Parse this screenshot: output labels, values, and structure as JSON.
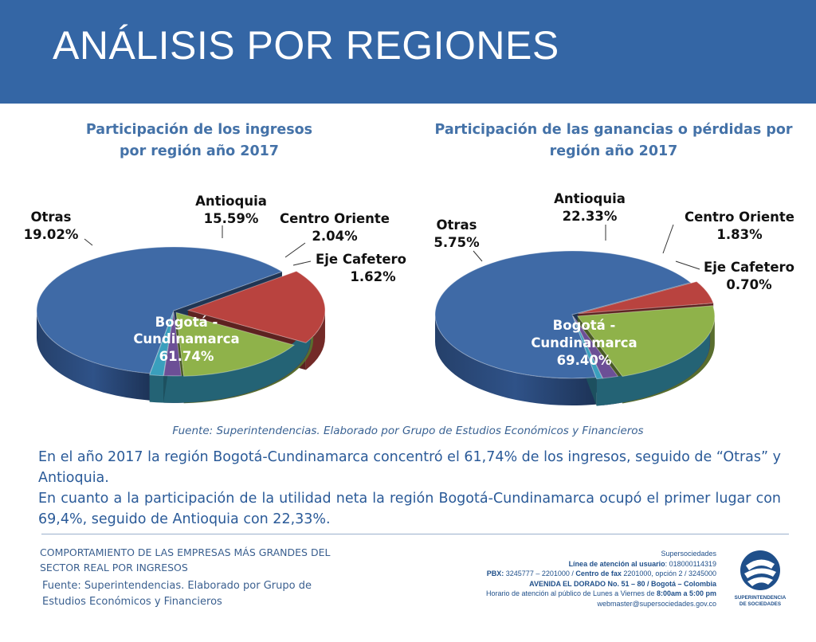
{
  "header": {
    "title": "ANÁLISIS POR REGIONES"
  },
  "chart_data": [
    {
      "type": "pie",
      "title_line1": "Participación de los ingresos",
      "title_line2": "por región año 2017",
      "categories": [
        "Bogotá - Cundinamarca",
        "Otras",
        "Antioquia",
        "Centro Oriente",
        "Eje Cafetero"
      ],
      "values": [
        61.74,
        19.02,
        15.59,
        2.04,
        1.62
      ],
      "data_labels": [
        "61.74%",
        "19.02%",
        "15.59%",
        "2.04%",
        "1.62%"
      ],
      "colors": [
        "#3f6aa6",
        "#b9433f",
        "#8fb24a",
        "#6c4f96",
        "#3a9fbd"
      ]
    },
    {
      "type": "pie",
      "title_line1": "Participación de las ganancias o pérdidas por",
      "title_line2": "región año 2017",
      "categories": [
        "Bogotá - Cundinamarca",
        "Otras",
        "Antioquia",
        "Centro Oriente",
        "Eje Cafetero"
      ],
      "values": [
        69.4,
        5.75,
        22.33,
        1.83,
        0.7
      ],
      "data_labels": [
        "69.40%",
        "5.75%",
        "22.33%",
        "1.83%",
        "0.70%"
      ],
      "colors": [
        "#3f6aa6",
        "#b9433f",
        "#8fb24a",
        "#6c4f96",
        "#3a9fbd"
      ]
    }
  ],
  "labels": {
    "bogota_line1": "Bogotá -",
    "bogota_line2": "Cundinamarca",
    "otras": "Otras",
    "antioquia": "Antioquia",
    "centro_oriente": "Centro Oriente",
    "eje_cafetero": "Eje Cafetero"
  },
  "source_note": "Fuente: Superintendencias. Elaborado por Grupo de Estudios Económicos y Financieros",
  "body": {
    "paragraph1": "En el año 2017 la región Bogotá-Cundinamarca  concentró el 61,74% de los ingresos, seguido de “Otras” y Antioquia.",
    "paragraph2": "En cuanto a la participación de la utilidad neta la región Bogotá-Cundinamarca ocupó el primer lugar con 69,4%, seguido de Antioquia con 22,33%."
  },
  "footer": {
    "title": "COMPORTAMIENTO DE LAS EMPRESAS MÁS GRANDES DEL SECTOR REAL POR INGRESOS",
    "source": "Fuente: Superintendencias. Elaborado por Grupo de Estudios Económicos y Financieros",
    "contact": {
      "org": "Supersociedades",
      "line_label": "Línea de atención al usuario",
      "line_value": ": 018000114319",
      "pbx_label": "PBX:",
      "pbx_value": " 3245777 – 2201000 / ",
      "fax_label": "Centro de fax",
      "fax_value": " 2201000, opción 2 / 3245000",
      "address": "AVENIDA EL DORADO No. 51 – 80 / Bogotá – Colombia",
      "hours_prefix": "Horario de atención al público de Lunes a Viernes de ",
      "hours_value": "8:00am a 5:00 pm",
      "email": "webmaster@supersociedades.gov.co"
    },
    "logo_line1": "SUPERINTENDENCIA",
    "logo_line2": "DE SOCIEDADES"
  }
}
